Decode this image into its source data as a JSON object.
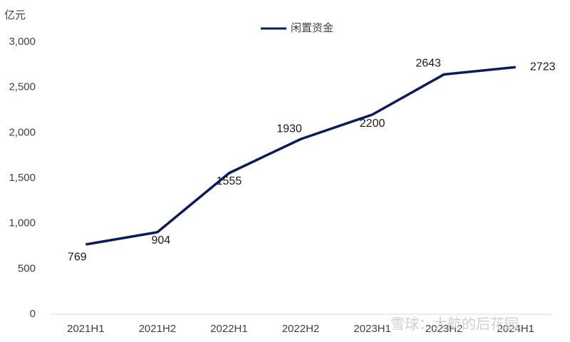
{
  "chart_data": {
    "type": "line",
    "y_unit": "亿元",
    "categories": [
      "2021H1",
      "2021H2",
      "2022H1",
      "2022H2",
      "2023H1",
      "2023H2",
      "2024H1"
    ],
    "series": [
      {
        "name": "闲置资金",
        "color": "#0c1a5c",
        "values": [
          769,
          904,
          1555,
          1930,
          2200,
          2643,
          2723
        ]
      }
    ],
    "ylim": [
      0,
      3000
    ],
    "yticks": [
      0,
      500,
      {
        "value": 1000,
        "label": "1,000"
      },
      {
        "value": 1500,
        "label": "1,500"
      },
      {
        "value": 2000,
        "label": "2,000"
      },
      {
        "value": 2500,
        "label": "2,500"
      },
      {
        "value": 3000,
        "label": "3,000"
      }
    ],
    "grid": false,
    "legend": "top",
    "watermark": "雪球：大航的后花园"
  }
}
